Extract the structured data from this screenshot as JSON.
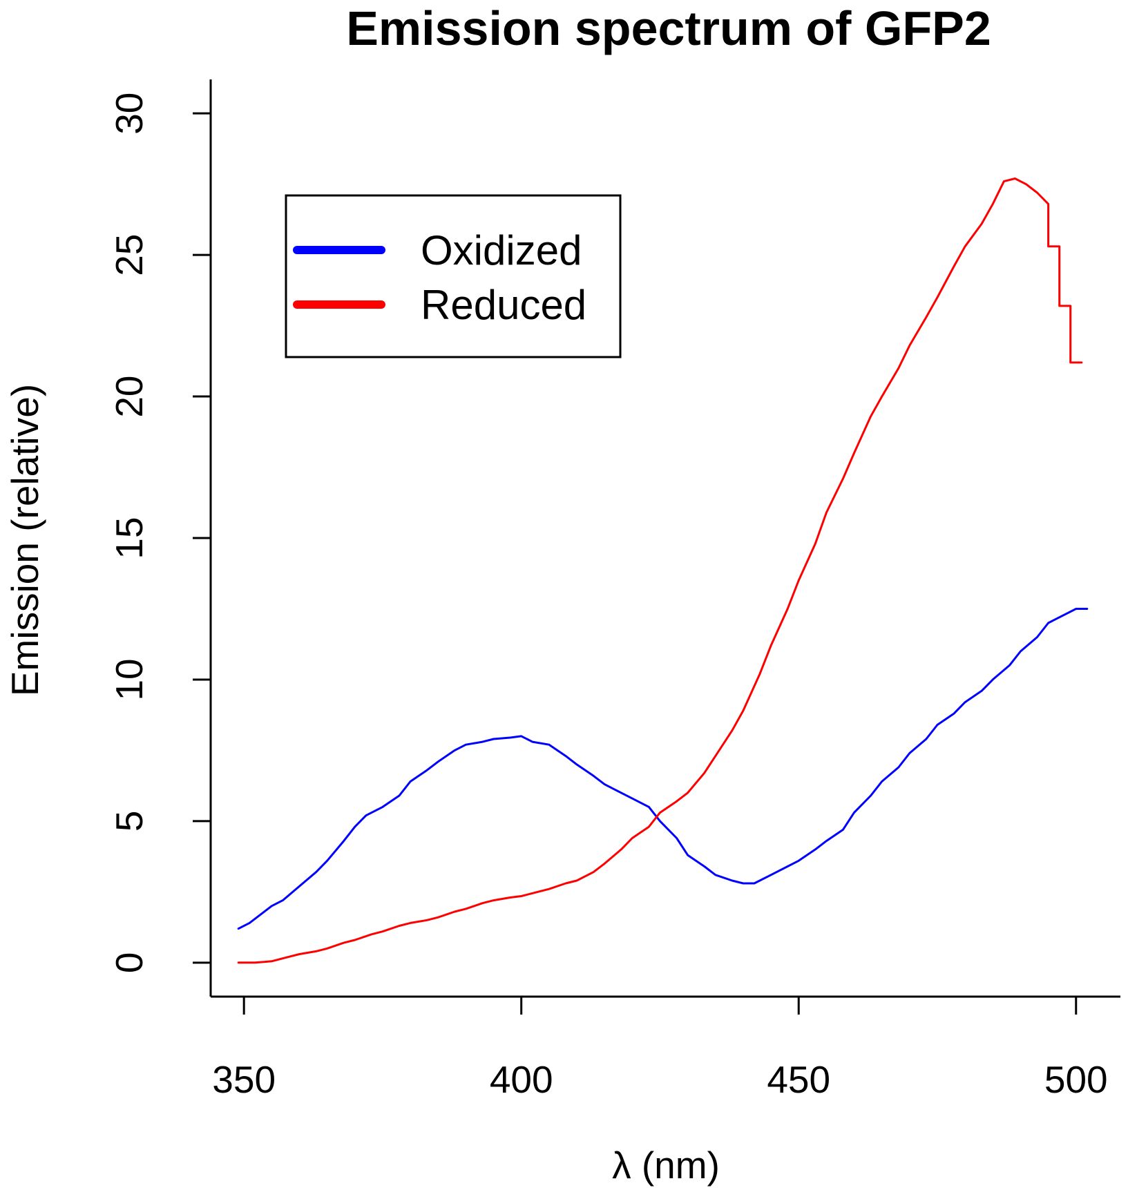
{
  "chart_data": {
    "type": "line",
    "title": "Emission spectrum of GFP2",
    "xlabel": "λ (nm)",
    "ylabel": "Emission (relative)",
    "xlim": [
      344,
      508
    ],
    "ylim": [
      -1.2,
      31.2
    ],
    "xticks": [
      350,
      400,
      450,
      500
    ],
    "yticks": [
      0,
      5,
      10,
      15,
      20,
      25,
      30
    ],
    "xtick_labels": [
      "350",
      "400",
      "450",
      "500"
    ],
    "ytick_labels": [
      "0",
      "5",
      "10",
      "15",
      "20",
      "25",
      "30"
    ],
    "grid": false,
    "legend_position": "top-left",
    "series": [
      {
        "name": "Oxidized",
        "color": "#0000ff",
        "x": [
          349,
          351,
          353,
          355,
          357,
          360,
          363,
          365,
          368,
          370,
          372,
          375,
          378,
          380,
          383,
          385,
          388,
          390,
          393,
          395,
          398,
          400,
          402,
          405,
          408,
          410,
          413,
          415,
          418,
          420,
          423,
          425,
          428,
          430,
          433,
          435,
          438,
          440,
          442,
          445,
          448,
          450,
          453,
          455,
          458,
          460,
          463,
          465,
          468,
          470,
          473,
          475,
          478,
          480,
          483,
          485,
          488,
          490,
          493,
          495,
          498,
          500,
          502
        ],
        "y": [
          1.2,
          1.4,
          1.7,
          2.0,
          2.2,
          2.7,
          3.2,
          3.6,
          4.3,
          4.8,
          5.2,
          5.5,
          5.9,
          6.4,
          6.8,
          7.1,
          7.5,
          7.7,
          7.8,
          7.9,
          7.95,
          8.0,
          7.8,
          7.7,
          7.3,
          7.0,
          6.6,
          6.3,
          6.0,
          5.8,
          5.5,
          5.0,
          4.4,
          3.8,
          3.4,
          3.1,
          2.9,
          2.8,
          2.8,
          3.1,
          3.4,
          3.6,
          4.0,
          4.3,
          4.7,
          5.3,
          5.9,
          6.4,
          6.9,
          7.4,
          7.9,
          8.4,
          8.8,
          9.2,
          9.6,
          10.0,
          10.5,
          11.0,
          11.5,
          12.0,
          12.3,
          12.5,
          12.5
        ]
      },
      {
        "name": "Reduced",
        "color": "#ff0000",
        "x": [
          349,
          352,
          355,
          358,
          360,
          363,
          365,
          368,
          370,
          373,
          375,
          378,
          380,
          383,
          385,
          388,
          390,
          393,
          395,
          398,
          400,
          403,
          405,
          408,
          410,
          413,
          415,
          418,
          420,
          423,
          425,
          428,
          430,
          433,
          435,
          438,
          440,
          443,
          445,
          448,
          450,
          453,
          455,
          458,
          460,
          463,
          465,
          468,
          470,
          473,
          475,
          478,
          480,
          483,
          485,
          487,
          489,
          491,
          493,
          495,
          495,
          497,
          497,
          499,
          499,
          501
        ],
        "y": [
          0.0,
          0.0,
          0.05,
          0.2,
          0.3,
          0.4,
          0.5,
          0.7,
          0.8,
          1.0,
          1.1,
          1.3,
          1.4,
          1.5,
          1.6,
          1.8,
          1.9,
          2.1,
          2.2,
          2.3,
          2.35,
          2.5,
          2.6,
          2.8,
          2.9,
          3.2,
          3.5,
          4.0,
          4.4,
          4.8,
          5.3,
          5.7,
          6.0,
          6.7,
          7.3,
          8.2,
          8.9,
          10.2,
          11.2,
          12.5,
          13.5,
          14.8,
          15.9,
          17.1,
          18.0,
          19.3,
          20.0,
          21.0,
          21.8,
          22.8,
          23.5,
          24.6,
          25.3,
          26.1,
          26.8,
          27.6,
          27.7,
          27.5,
          27.2,
          26.8,
          25.3,
          25.3,
          23.2,
          23.2,
          21.2,
          21.2
        ]
      }
    ],
    "legend": [
      {
        "label": "Oxidized",
        "color": "#0000ff"
      },
      {
        "label": "Reduced",
        "color": "#ff0000"
      }
    ]
  }
}
